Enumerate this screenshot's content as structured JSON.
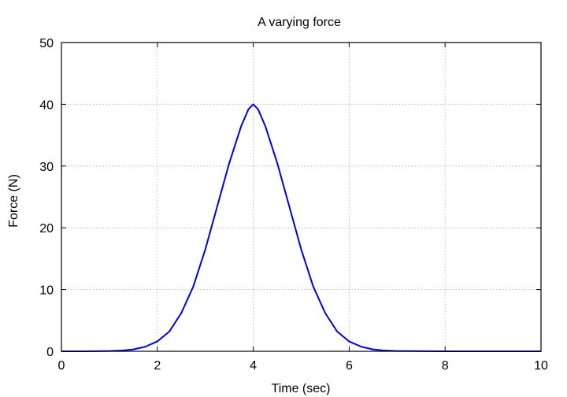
{
  "chart_data": {
    "type": "line",
    "title": "A varying force",
    "xlabel": "Time (sec)",
    "ylabel": "Force (N)",
    "xlim": [
      0,
      10
    ],
    "ylim": [
      0,
      50
    ],
    "xticks": [
      0,
      2,
      4,
      6,
      8,
      10
    ],
    "yticks": [
      0,
      10,
      20,
      30,
      40,
      50
    ],
    "grid": true,
    "legend": "none",
    "series": [
      {
        "color": "#0000e0",
        "x": [
          0,
          0.5,
          1,
          1.25,
          1.5,
          1.75,
          2,
          2.25,
          2.5,
          2.75,
          3,
          3.25,
          3.5,
          3.75,
          3.9,
          4,
          4.1,
          4.25,
          4.5,
          4.75,
          5,
          5.25,
          5.5,
          5.75,
          6,
          6.25,
          6.5,
          6.75,
          7,
          8,
          9,
          10
        ],
        "y": [
          0,
          0,
          0.05,
          0.12,
          0.3,
          0.75,
          1.6,
          3.2,
          6.2,
          10.5,
          16.5,
          23.5,
          30.5,
          36.5,
          39.2,
          40,
          39.2,
          36.5,
          30.5,
          23.5,
          16.5,
          10.5,
          6.2,
          3.2,
          1.6,
          0.75,
          0.3,
          0.12,
          0.05,
          0,
          0,
          0
        ]
      }
    ]
  }
}
